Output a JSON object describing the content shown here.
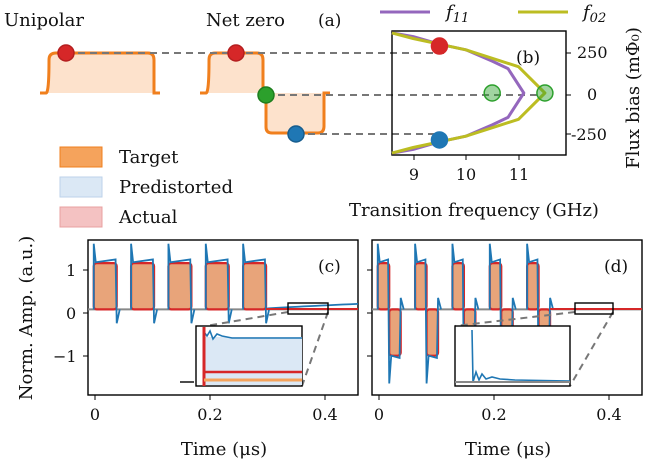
{
  "figure": {
    "panel_a": {
      "label": "(a)",
      "titles": [
        "Unipolar",
        "Net zero"
      ]
    },
    "panel_b": {
      "label": "(b)",
      "legend": [
        "f_11",
        "f_02"
      ],
      "xlabel": "Transition frequency (GHz)",
      "ylabel": "Flux bias (mΦ₀)",
      "xticks": [
        "9",
        "10",
        "11"
      ],
      "yticks": [
        "250",
        "0",
        "-250"
      ]
    },
    "legend_left": [
      "Target",
      "Predistorted",
      "Actual"
    ],
    "panel_c": {
      "label": "(c)"
    },
    "panel_d": {
      "label": "(d)"
    },
    "shared": {
      "ylabel": "Norm. Amp. (a.u.)",
      "xlabel": "Time (μs)",
      "yticks": [
        "1",
        "0",
        "−1"
      ],
      "xticks": [
        "0",
        "0.2",
        "0.4"
      ]
    },
    "colors": {
      "target": "#f5a35c",
      "target_edge": "#f07f1d",
      "predistorted": "#dbe8f5",
      "actual": "#d62728",
      "predistorted_line": "#1f77b4",
      "f11": "#9467bd",
      "f02": "#bcbd22",
      "green_marker": "#2ca02c"
    }
  },
  "chart_data": [
    {
      "type": "line",
      "title": "",
      "xlabel": "Transition frequency (GHz)",
      "ylabel": "Flux bias (mΦ₀)",
      "xlim": [
        8.6,
        11.9
      ],
      "ylim": [
        -330,
        330
      ],
      "series": [
        {
          "name": "f_11",
          "x": [
            11.1,
            10.8,
            10.5,
            10.0,
            9.5,
            9.0,
            8.6
          ],
          "y": [
            0,
            130,
            170,
            230,
            260,
            300,
            320
          ]
        },
        {
          "name": "f_02",
          "x": [
            11.5,
            11.0,
            10.0,
            9.5,
            9.0,
            8.6
          ],
          "y": [
            0,
            140,
            230,
            260,
            290,
            320
          ]
        }
      ],
      "markers": [
        {
          "x": 9.5,
          "y": 250,
          "color": "red"
        },
        {
          "x": 10.5,
          "y": 0,
          "color": "green"
        },
        {
          "x": 11.5,
          "y": 0,
          "color": "green"
        },
        {
          "x": 9.5,
          "y": -250,
          "color": "blue"
        }
      ]
    },
    {
      "type": "line",
      "title": "",
      "xlabel": "Time (μs)",
      "ylabel": "Norm. Amp. (a.u.)",
      "xlim": [
        -0.01,
        0.46
      ],
      "ylim": [
        -1.85,
        1.5
      ],
      "pulse_type": "unipolar",
      "pulse_starts": [
        0,
        0.065,
        0.13,
        0.195,
        0.26
      ],
      "pulse_width": 0.04,
      "amplitude": 1
    },
    {
      "type": "line",
      "title": "",
      "xlabel": "Time (μs)",
      "ylabel": "",
      "xlim": [
        -0.01,
        0.46
      ],
      "ylim": [
        -1.85,
        1.5
      ],
      "pulse_type": "net-zero",
      "pulse_starts": [
        0,
        0.065,
        0.13,
        0.195,
        0.26
      ],
      "pulse_width": 0.04,
      "amplitude": 1
    }
  ]
}
